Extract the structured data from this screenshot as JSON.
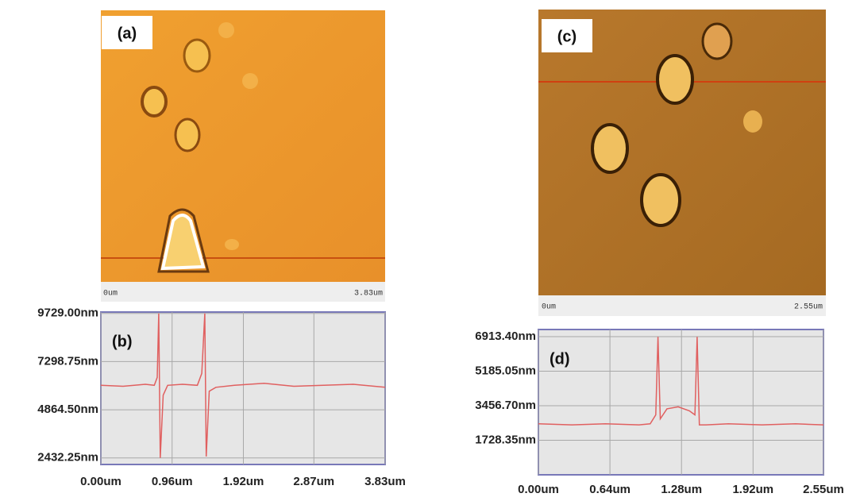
{
  "images": [
    {
      "label": "(a)",
      "scale_start": "0um",
      "scale_end": "3.83um"
    },
    {
      "label": "(c)",
      "scale_start": "0um",
      "scale_end": "2.55um"
    }
  ],
  "chart_data": [
    {
      "type": "line",
      "panel_label": "(b)",
      "x": [
        0,
        0.3,
        0.6,
        0.72,
        0.76,
        0.78,
        0.8,
        0.84,
        0.9,
        1.1,
        1.3,
        1.36,
        1.4,
        1.42,
        1.46,
        1.55,
        1.8,
        2.2,
        2.6,
        3.0,
        3.4,
        3.83
      ],
      "values": [
        6100,
        6050,
        6150,
        6100,
        6500,
        9729,
        2432,
        5600,
        6100,
        6150,
        6100,
        6700,
        9729,
        2500,
        5800,
        6000,
        6100,
        6200,
        6050,
        6100,
        6150,
        6000
      ],
      "color": "#e06060",
      "xlim": [
        0,
        3.83
      ],
      "xticks": [
        {
          "value": 0,
          "label": "0.00um"
        },
        {
          "value": 0.96,
          "label": "0.96um"
        },
        {
          "value": 1.92,
          "label": "1.92um"
        },
        {
          "value": 2.87,
          "label": "2.87um"
        },
        {
          "value": 3.83,
          "label": "3.83um"
        }
      ],
      "ylim": [
        2100,
        9800
      ],
      "yticks": [
        {
          "value": 2432.25,
          "label": "2432.25nm"
        },
        {
          "value": 4864.5,
          "label": "4864.50nm"
        },
        {
          "value": 7298.75,
          "label": "7298.75nm"
        },
        {
          "value": 9729,
          "label": "9729.00nm"
        }
      ],
      "grid": true
    },
    {
      "type": "line",
      "panel_label": "(d)",
      "x": [
        0,
        0.3,
        0.6,
        0.9,
        1.0,
        1.05,
        1.07,
        1.09,
        1.15,
        1.25,
        1.35,
        1.4,
        1.42,
        1.44,
        1.5,
        1.7,
        2.0,
        2.3,
        2.55
      ],
      "values": [
        2550,
        2500,
        2550,
        2500,
        2550,
        3000,
        6900,
        2800,
        3300,
        3400,
        3200,
        3000,
        6900,
        2500,
        2500,
        2550,
        2500,
        2550,
        2500
      ],
      "color": "#e06060",
      "xlim": [
        0,
        2.55
      ],
      "xticks": [
        {
          "value": 0,
          "label": "0.00um"
        },
        {
          "value": 0.64,
          "label": "0.64um"
        },
        {
          "value": 1.28,
          "label": "1.28um"
        },
        {
          "value": 1.92,
          "label": "1.92um"
        },
        {
          "value": 2.55,
          "label": "2.55um"
        }
      ],
      "ylim": [
        0,
        7270
      ],
      "yticks": [
        {
          "value": 1728.35,
          "label": "1728.35nm"
        },
        {
          "value": 3456.7,
          "label": "3456.70nm"
        },
        {
          "value": 5185.05,
          "label": "5185.05nm"
        },
        {
          "value": 6913.4,
          "label": "6913.40nm"
        }
      ],
      "grid": true
    }
  ]
}
